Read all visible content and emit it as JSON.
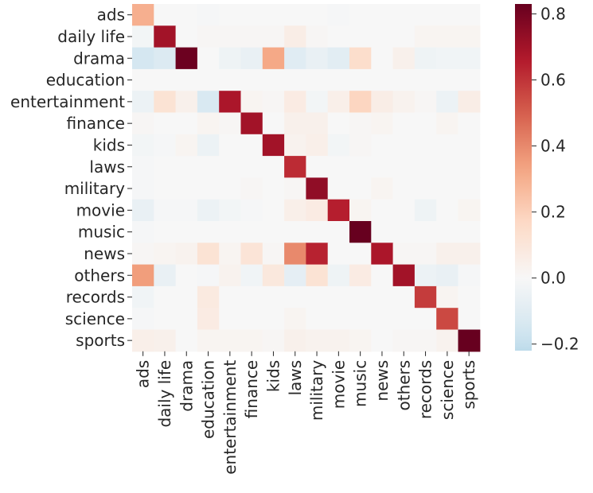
{
  "chart_data": {
    "type": "heatmap",
    "title": "",
    "xlabel": "",
    "ylabel": "",
    "row_labels": [
      "ads",
      "daily life",
      "drama",
      "education",
      "entertainment",
      "finance",
      "kids",
      "laws",
      "military",
      "movie",
      "music",
      "news",
      "others",
      "records",
      "science",
      "sports"
    ],
    "col_labels": [
      "ads",
      "daily life",
      "drama",
      "education",
      "entertainment",
      "finance",
      "kids",
      "laws",
      "military",
      "movie",
      "music",
      "news",
      "others",
      "records",
      "science",
      "sports"
    ],
    "values": [
      [
        0.3,
        0.0,
        0.0,
        -0.01,
        0.0,
        0.0,
        0.0,
        0.0,
        0.0,
        -0.01,
        0.0,
        0.0,
        0.0,
        0.0,
        0.0,
        0.0
      ],
      [
        -0.02,
        0.7,
        0.0,
        0.01,
        0.01,
        0.01,
        0.01,
        0.06,
        0.01,
        0.0,
        0.0,
        0.0,
        0.0,
        0.02,
        0.02,
        0.02
      ],
      [
        -0.15,
        -0.12,
        0.82,
        0.0,
        -0.04,
        -0.06,
        0.32,
        -0.1,
        -0.06,
        -0.09,
        0.15,
        0.0,
        0.04,
        -0.04,
        -0.03,
        -0.03
      ],
      [
        0.0,
        0.0,
        0.0,
        0.0,
        0.0,
        0.0,
        0.0,
        0.0,
        0.0,
        0.0,
        0.0,
        0.0,
        0.0,
        0.0,
        0.0,
        0.0
      ],
      [
        -0.05,
        0.12,
        0.04,
        -0.13,
        0.68,
        0.02,
        0.01,
        0.07,
        -0.02,
        0.05,
        0.18,
        0.06,
        0.03,
        0.01,
        -0.05,
        0.06
      ],
      [
        0.01,
        0.0,
        0.0,
        0.02,
        0.01,
        0.7,
        0.0,
        0.04,
        0.04,
        0.0,
        0.01,
        0.02,
        0.0,
        0.0,
        0.02,
        0.0
      ],
      [
        -0.02,
        -0.01,
        0.02,
        -0.05,
        0.0,
        0.0,
        0.7,
        0.03,
        0.05,
        -0.02,
        0.01,
        0.0,
        0.0,
        0.0,
        0.0,
        0.0
      ],
      [
        -0.01,
        0.0,
        0.0,
        0.0,
        0.0,
        0.0,
        0.0,
        0.62,
        0.0,
        0.0,
        0.0,
        0.0,
        0.0,
        0.0,
        0.0,
        0.0
      ],
      [
        -0.01,
        0.0,
        0.0,
        0.0,
        0.0,
        0.01,
        0.0,
        0.01,
        0.74,
        0.0,
        0.0,
        0.02,
        0.0,
        0.0,
        0.0,
        0.0
      ],
      [
        -0.06,
        -0.01,
        -0.01,
        -0.05,
        -0.02,
        -0.01,
        0.0,
        0.05,
        0.07,
        0.65,
        0.02,
        0.0,
        0.0,
        -0.04,
        0.0,
        0.02
      ],
      [
        -0.01,
        0.0,
        0.0,
        0.0,
        0.0,
        0.0,
        0.0,
        0.0,
        0.0,
        0.0,
        0.83,
        0.0,
        0.0,
        0.0,
        0.0,
        0.0
      ],
      [
        0.01,
        0.02,
        0.03,
        0.12,
        0.02,
        0.11,
        0.01,
        0.4,
        0.64,
        0.0,
        0.0,
        0.68,
        0.01,
        0.01,
        0.04,
        0.04
      ],
      [
        0.35,
        -0.06,
        0.0,
        -0.01,
        0.03,
        -0.03,
        0.09,
        -0.08,
        0.12,
        -0.04,
        0.07,
        0.0,
        0.7,
        -0.05,
        -0.06,
        -0.01
      ],
      [
        -0.03,
        0.0,
        0.0,
        0.08,
        0.0,
        0.0,
        0.0,
        0.0,
        0.0,
        0.0,
        0.0,
        0.0,
        0.0,
        0.58,
        0.02,
        0.0
      ],
      [
        -0.01,
        0.0,
        0.0,
        0.07,
        0.0,
        0.0,
        0.0,
        0.02,
        0.0,
        0.0,
        0.0,
        0.0,
        0.0,
        0.0,
        0.55,
        0.0
      ],
      [
        0.05,
        0.04,
        0.0,
        0.02,
        0.02,
        0.02,
        0.01,
        0.04,
        0.03,
        0.03,
        0.02,
        0.0,
        0.01,
        0.01,
        0.03,
        0.83
      ]
    ],
    "colorbar": {
      "vmin": -0.22,
      "vmax": 0.83,
      "center": 0.0,
      "ticks": [
        -0.2,
        0.0,
        0.2,
        0.4,
        0.6,
        0.8
      ],
      "tick_labels": [
        "−0.2",
        "0.0",
        "0.2",
        "0.4",
        "0.6",
        "0.8"
      ],
      "colormap": "RdBu_r diverging",
      "color_stops": [
        "#053061",
        "#2166ac",
        "#4393c3",
        "#92c5de",
        "#d1e5f0",
        "#f7f7f7",
        "#fddbc7",
        "#f4a582",
        "#d6604d",
        "#b2182b",
        "#67001f"
      ]
    }
  }
}
